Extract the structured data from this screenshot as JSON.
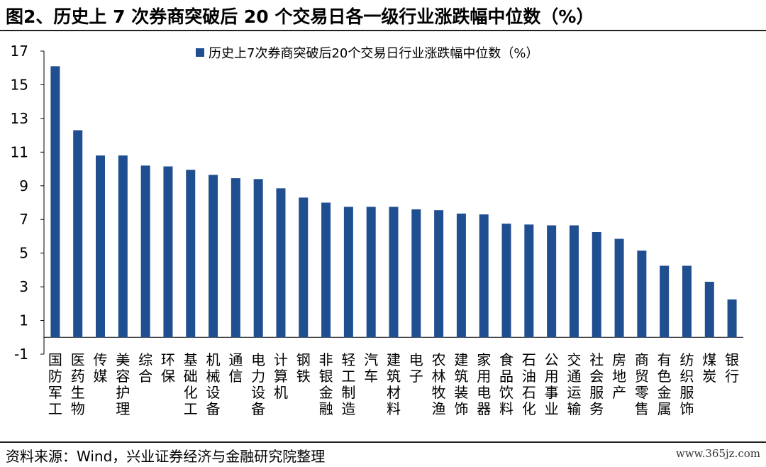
{
  "title": "图2、历史上 7 次券商突破后 20 个交易日各一级行业涨跌幅中位数（%）",
  "source": "资料来源：Wind，兴业证券经济与金融研究院整理",
  "watermark": "www.365jz.com",
  "colors": {
    "bar": "#1F4E91",
    "axis": "#000000"
  },
  "chart_data": {
    "type": "bar",
    "legend": "历史上7次券商突破后20个交易日行业涨跌幅中位数（%）",
    "legend_position": "top",
    "grid": false,
    "ylim": [
      -1,
      17
    ],
    "yticks": [
      "17",
      "15",
      "13",
      "11",
      "9",
      "7",
      "5",
      "3",
      "1",
      "-1"
    ],
    "categories": [
      "国防军工",
      "医药生物",
      "传媒",
      "美容护理",
      "综合",
      "环保",
      "基础化工",
      "机械设备",
      "通信",
      "电力设备",
      "计算机",
      "钢铁",
      "非银金融",
      "轻工制造",
      "汽车",
      "建筑材料",
      "电子",
      "农林牧渔",
      "建筑装饰",
      "家用电器",
      "食品饮料",
      "石油石化",
      "公用事业",
      "交通运输",
      "社会服务",
      "房地产",
      "商贸零售",
      "有色金属",
      "纺织服饰",
      "煤炭",
      "银行"
    ],
    "values": [
      16.1,
      12.3,
      10.8,
      10.8,
      10.2,
      10.15,
      9.95,
      9.65,
      9.45,
      9.4,
      8.85,
      8.3,
      8.0,
      7.75,
      7.75,
      7.75,
      7.6,
      7.55,
      7.35,
      7.3,
      6.75,
      6.7,
      6.65,
      6.65,
      6.25,
      5.85,
      5.15,
      4.25,
      4.25,
      3.3,
      2.25
    ]
  }
}
